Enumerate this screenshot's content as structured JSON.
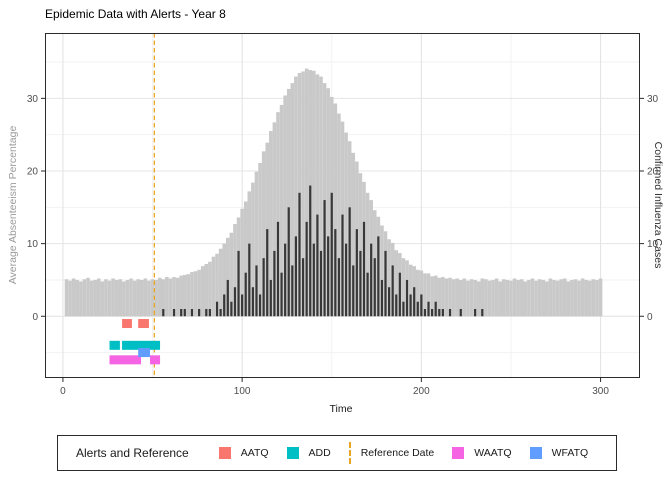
{
  "legend": {
    "title": "Alerts and Reference",
    "items": [
      {
        "key": "aatq",
        "type": "square",
        "color": "#F8766D",
        "label": "AATQ"
      },
      {
        "key": "add",
        "type": "square",
        "color": "#00BFC4",
        "label": "ADD"
      },
      {
        "key": "reference-date",
        "type": "dash",
        "color": "#E9A623",
        "label": "Reference Date"
      },
      {
        "key": "waatq",
        "type": "square",
        "color": "#F564E3",
        "label": "WAATQ"
      },
      {
        "key": "wfatq",
        "type": "square",
        "color": "#619CFF",
        "label": "WFATQ"
      }
    ]
  },
  "chart_data": {
    "type": "bar",
    "title": "Epidemic Data with Alerts - Year 8",
    "xlabel": "Time",
    "ylabel_left": "Average Absenteeism Percentage",
    "ylabel_right": "Confirmed Influenza Cases",
    "xlim": [
      -10,
      322
    ],
    "ylim": [
      -8.5,
      39
    ],
    "x_ticks": [
      0,
      100,
      200,
      300
    ],
    "x_minor_ticks": [
      50,
      150,
      250
    ],
    "y_ticks": [
      0,
      10,
      20,
      30
    ],
    "y_minor_ticks": [
      -5,
      5,
      15,
      25,
      35
    ],
    "reference_time": 51,
    "colors": {
      "absenteeism_bar": "#c9c9c9",
      "cases_bar": "#383838",
      "reference_line": "#E9A623",
      "grid_major": "#e4e4e4",
      "grid_minor": "#f2f2f2",
      "panel_border": "#2b2b2b",
      "tick_label": "#4d4d4d"
    },
    "absenteeism": {
      "t_start": 2,
      "t_step": 2,
      "values": [
        5.1,
        4.9,
        5.2,
        5.0,
        4.8,
        5.1,
        5.3,
        4.9,
        5.0,
        5.2,
        4.8,
        5.1,
        4.9,
        5.2,
        5.0,
        5.1,
        4.8,
        5.0,
        5.2,
        4.9,
        5.1,
        5.0,
        5.2,
        4.9,
        5.1,
        5.0,
        5.3,
        5.1,
        5.4,
        5.2,
        5.4,
        5.3,
        5.6,
        5.7,
        5.8,
        6.1,
        6.2,
        6.4,
        6.9,
        7.2,
        7.5,
        8.2,
        8.6,
        9.3,
        10.0,
        10.8,
        11.5,
        12.7,
        13.6,
        14.8,
        15.8,
        17.2,
        18.4,
        19.9,
        21.1,
        22.7,
        23.9,
        25.5,
        26.7,
        28.1,
        29.1,
        30.4,
        31.3,
        32.1,
        33.0,
        33.5,
        33.7,
        34.1,
        33.9,
        33.8,
        33.3,
        33.0,
        32.1,
        31.4,
        30.2,
        29.3,
        27.9,
        26.8,
        25.3,
        24.1,
        22.5,
        21.3,
        19.7,
        18.5,
        17.0,
        16.0,
        14.6,
        13.7,
        12.5,
        11.7,
        10.6,
        10.1,
        9.1,
        8.7,
        8.0,
        7.7,
        7.1,
        6.9,
        6.4,
        6.3,
        5.9,
        5.9,
        5.5,
        5.6,
        5.3,
        5.4,
        5.2,
        5.3,
        5.1,
        5.2,
        5.0,
        5.2,
        4.9,
        5.1,
        5.0,
        4.8,
        5.2,
        5.1,
        4.9,
        5.0,
        5.2,
        4.8,
        5.1,
        5.0,
        4.9,
        5.2,
        5.0,
        5.1,
        4.8,
        5.0,
        5.2,
        4.9,
        5.1,
        5.0,
        4.8,
        5.2,
        5.0,
        4.9,
        5.1,
        5.2,
        4.8,
        5.0,
        5.1,
        4.9,
        5.2,
        5.0,
        4.9,
        5.1,
        5.0,
        5.2
      ]
    },
    "cases": {
      "t_start": 56,
      "t_step": 2,
      "values": [
        1,
        0,
        0,
        1,
        0,
        1,
        1,
        0,
        1,
        0,
        1,
        0,
        1,
        1,
        0,
        2,
        1,
        3,
        5,
        2,
        4,
        9,
        3,
        6,
        10,
        4,
        7,
        3,
        8,
        12,
        5,
        9,
        13,
        6,
        10,
        15,
        7,
        11,
        17,
        8,
        13,
        18,
        10,
        14,
        9,
        16,
        11,
        17,
        12,
        8,
        14,
        10,
        15,
        7,
        12,
        9,
        13,
        6,
        10,
        8,
        11,
        5,
        9,
        4,
        7,
        3,
        6,
        2,
        5,
        3,
        4,
        2,
        3,
        1,
        2,
        1,
        2,
        1,
        1,
        0,
        1,
        0,
        0,
        1,
        0,
        0,
        0,
        1,
        0,
        1
      ]
    },
    "alerts": [
      {
        "name": "AATQ",
        "color": "#F8766D",
        "y": -1,
        "segments": [
          [
            33,
            38.5
          ],
          [
            42,
            48
          ]
        ]
      },
      {
        "name": "ADD",
        "color": "#00BFC4",
        "y": -4,
        "segments": [
          [
            26,
            31.8
          ],
          [
            33,
            54.2
          ]
        ]
      },
      {
        "name": "WAATQ",
        "color": "#F564E3",
        "y": -6,
        "segments": [
          [
            26,
            43.6
          ],
          [
            48.6,
            54.2
          ]
        ]
      },
      {
        "name": "WFATQ",
        "color": "#619CFF",
        "y": -5,
        "segments": [
          [
            42,
            48.6
          ]
        ]
      }
    ]
  }
}
